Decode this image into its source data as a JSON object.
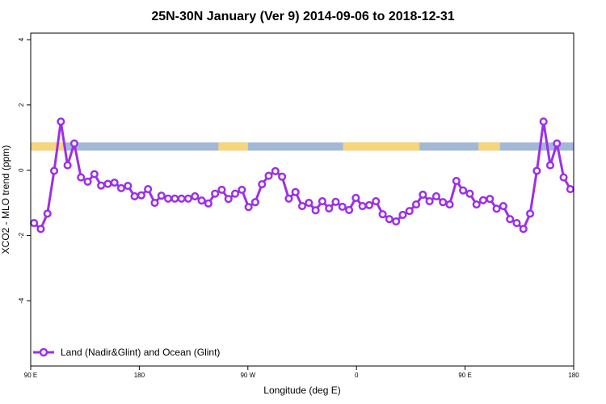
{
  "chart_data": {
    "type": "line",
    "title": "25N-30N January (Ver 9)   2014-09-06 to 2018-12-31",
    "xlabel": "Longitude (deg E)",
    "ylabel": "XCO2 - MLO trend (ppm)",
    "xlim": [
      0,
      405
    ],
    "ylim": [
      -6,
      4.2
    ],
    "x_ticks": [
      {
        "value": 0,
        "label": "90 E"
      },
      {
        "value": 81,
        "label": "180"
      },
      {
        "value": 162,
        "label": "90 W"
      },
      {
        "value": 243,
        "label": "0"
      },
      {
        "value": 324,
        "label": "90 E"
      },
      {
        "value": 405,
        "label": "180"
      }
    ],
    "y_ticks": [
      {
        "value": 4,
        "label": "4"
      },
      {
        "value": 2,
        "label": "2"
      },
      {
        "value": 0,
        "label": "0"
      },
      {
        "value": -2,
        "label": "-2"
      },
      {
        "value": -4,
        "label": "-4"
      }
    ],
    "grid": false,
    "legend_position": "bottom-left",
    "band": {
      "ymin": 0.6,
      "ymax": 0.85,
      "ocean_color": "#a3b8d7",
      "land_color": "#f7d57a",
      "land_segments": [
        [
          0,
          26
        ],
        [
          140,
          162
        ],
        [
          233,
          290
        ],
        [
          334,
          350
        ]
      ]
    },
    "series": [
      {
        "name": "Land (Nadir&Glint) and Ocean (Glint)",
        "color": "#9b30e8",
        "x": [
          2.5,
          7.5,
          12.5,
          17.5,
          22.5,
          27.5,
          32.5,
          37.5,
          42.5,
          47.5,
          52.5,
          57.5,
          62.5,
          67.5,
          72.5,
          77.5,
          82.5,
          87.5,
          92.5,
          97.5,
          102.5,
          107.5,
          112.5,
          117.5,
          122.5,
          127.5,
          132.5,
          137.5,
          142.5,
          147.5,
          152.5,
          157.5,
          162.5,
          167.5,
          172.5,
          177.5,
          182.5,
          187.5,
          192.5,
          197.5,
          202.5,
          207.5,
          212.5,
          217.5,
          222.5,
          227.5,
          232.5,
          237.5,
          242.5,
          247.5,
          252.5,
          257.5,
          262.5,
          267.5,
          272.5,
          277.5,
          282.5,
          287.5,
          292.5,
          297.5,
          302.5,
          307.5,
          312.5,
          317.5,
          322.5,
          327.5,
          332.5,
          337.5,
          342.5,
          347.5,
          352.5,
          357.5,
          362.5,
          367.5,
          372.5,
          377.5,
          382.5,
          387.5,
          392.5,
          397.5,
          402.5
        ],
        "values": [
          -1.62,
          -1.8,
          -1.33,
          -0.02,
          1.49,
          0.15,
          0.82,
          -0.22,
          -0.35,
          -0.12,
          -0.47,
          -0.42,
          -0.38,
          -0.55,
          -0.48,
          -0.8,
          -0.77,
          -0.58,
          -1.0,
          -0.78,
          -0.87,
          -0.87,
          -0.87,
          -0.87,
          -0.8,
          -0.93,
          -1.02,
          -0.72,
          -0.6,
          -0.88,
          -0.72,
          -0.6,
          -1.13,
          -0.98,
          -0.43,
          -0.17,
          -0.03,
          -0.2,
          -0.87,
          -0.67,
          -1.1,
          -1.0,
          -1.23,
          -0.95,
          -1.17,
          -0.97,
          -1.12,
          -1.22,
          -0.85,
          -1.1,
          -1.07,
          -0.95,
          -1.35,
          -1.5,
          -1.57,
          -1.37,
          -1.25,
          -1.05,
          -0.75,
          -0.95,
          -0.8,
          -0.98,
          -1.05,
          -0.33,
          -0.62,
          -0.72,
          -1.05,
          -0.92,
          -0.88,
          -1.18,
          -1.1,
          -1.5,
          -1.62,
          -1.8,
          -1.33,
          -0.02,
          1.49,
          0.15,
          0.82,
          -0.22,
          -0.58
        ]
      }
    ]
  }
}
